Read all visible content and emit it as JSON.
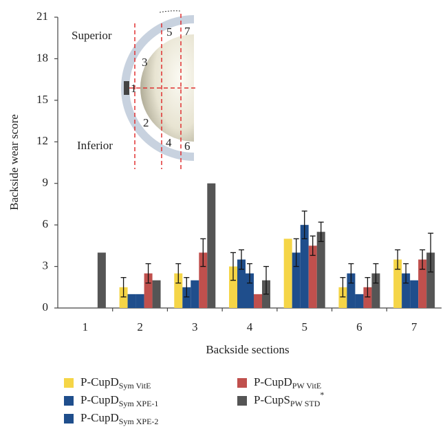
{
  "chart_data": {
    "type": "bar",
    "y_label": "Backside wear score",
    "x_label": "Backside sections",
    "categories": [
      "1",
      "2",
      "3",
      "4",
      "5",
      "6",
      "7"
    ],
    "ylim": [
      0,
      21
    ],
    "yticks": [
      0,
      3,
      6,
      9,
      12,
      15,
      18,
      21
    ],
    "series": [
      {
        "name": "P-CupD",
        "subscript": "Sym VitE",
        "color": "#f5d547",
        "values": [
          0,
          1.5,
          2.5,
          3,
          5,
          1.5,
          3.5
        ],
        "errors": [
          null,
          0.7,
          0.7,
          1,
          null,
          0.7,
          0.7
        ]
      },
      {
        "name": "P-CupD",
        "subscript": "Sym XPE-1",
        "color": "#1f4e8c",
        "values": [
          0,
          1,
          1.5,
          3.5,
          4,
          2.5,
          2.5
        ],
        "errors": [
          null,
          null,
          0.7,
          0.7,
          1,
          0.7,
          0.7
        ]
      },
      {
        "name": "P-CupD",
        "subscript": "Sym XPE-2",
        "color": "#1f4e8c",
        "values": [
          0,
          1,
          2,
          2.5,
          6,
          1,
          2
        ],
        "errors": [
          null,
          null,
          null,
          0.7,
          1,
          null,
          null
        ]
      },
      {
        "name": "P-CupD",
        "subscript": "PW VitE",
        "color": "#c0504d",
        "values": [
          0,
          2.5,
          4,
          1,
          4.5,
          1.5,
          3.5
        ],
        "errors": [
          null,
          0.7,
          1,
          null,
          0.7,
          0.7,
          0.7
        ]
      },
      {
        "name": "P-CupS",
        "subscript": "PW STD",
        "superscript": "*",
        "color": "#555555",
        "values": [
          4,
          2,
          9,
          2,
          5.5,
          2.5,
          4
        ],
        "errors": [
          null,
          null,
          null,
          1,
          0.7,
          0.7,
          1.4
        ]
      }
    ],
    "inset": {
      "superior": "Superior",
      "inferior": "Inferior",
      "sections": [
        "1",
        "2",
        "3",
        "4",
        "5",
        "6",
        "7"
      ]
    }
  }
}
